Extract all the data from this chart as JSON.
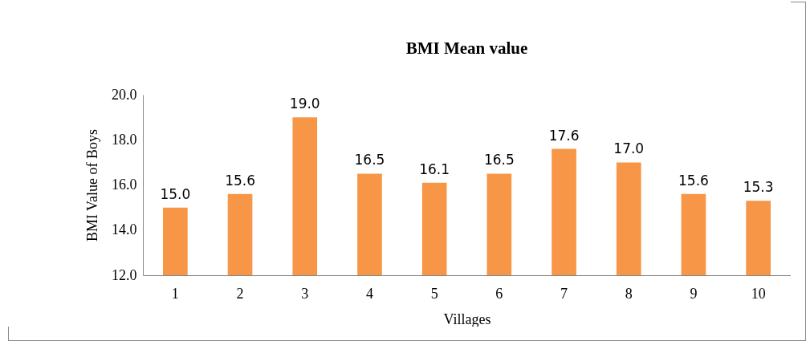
{
  "chart_data": {
    "type": "bar",
    "title": "BMI Mean value",
    "xlabel": "Villages",
    "ylabel": "BMI Value of Boys",
    "categories": [
      "1",
      "2",
      "3",
      "4",
      "5",
      "6",
      "7",
      "8",
      "9",
      "10"
    ],
    "values": [
      15.0,
      15.6,
      19.0,
      16.5,
      16.1,
      16.5,
      17.6,
      17.0,
      15.6,
      15.3
    ],
    "value_labels": [
      "15.0",
      "15.6",
      "19.0",
      "16.5",
      "16.1",
      "16.5",
      "17.6",
      "17.0",
      "15.6",
      "15.3"
    ],
    "color": "#f79646",
    "ylim": [
      12,
      20
    ],
    "yticks": [
      {
        "value": 12,
        "label": "12.0"
      },
      {
        "value": 14,
        "label": "14.0"
      },
      {
        "value": 16,
        "label": "16.0"
      },
      {
        "value": 18,
        "label": "18.0"
      },
      {
        "value": 20,
        "label": "20.0"
      }
    ],
    "grid": false
  }
}
